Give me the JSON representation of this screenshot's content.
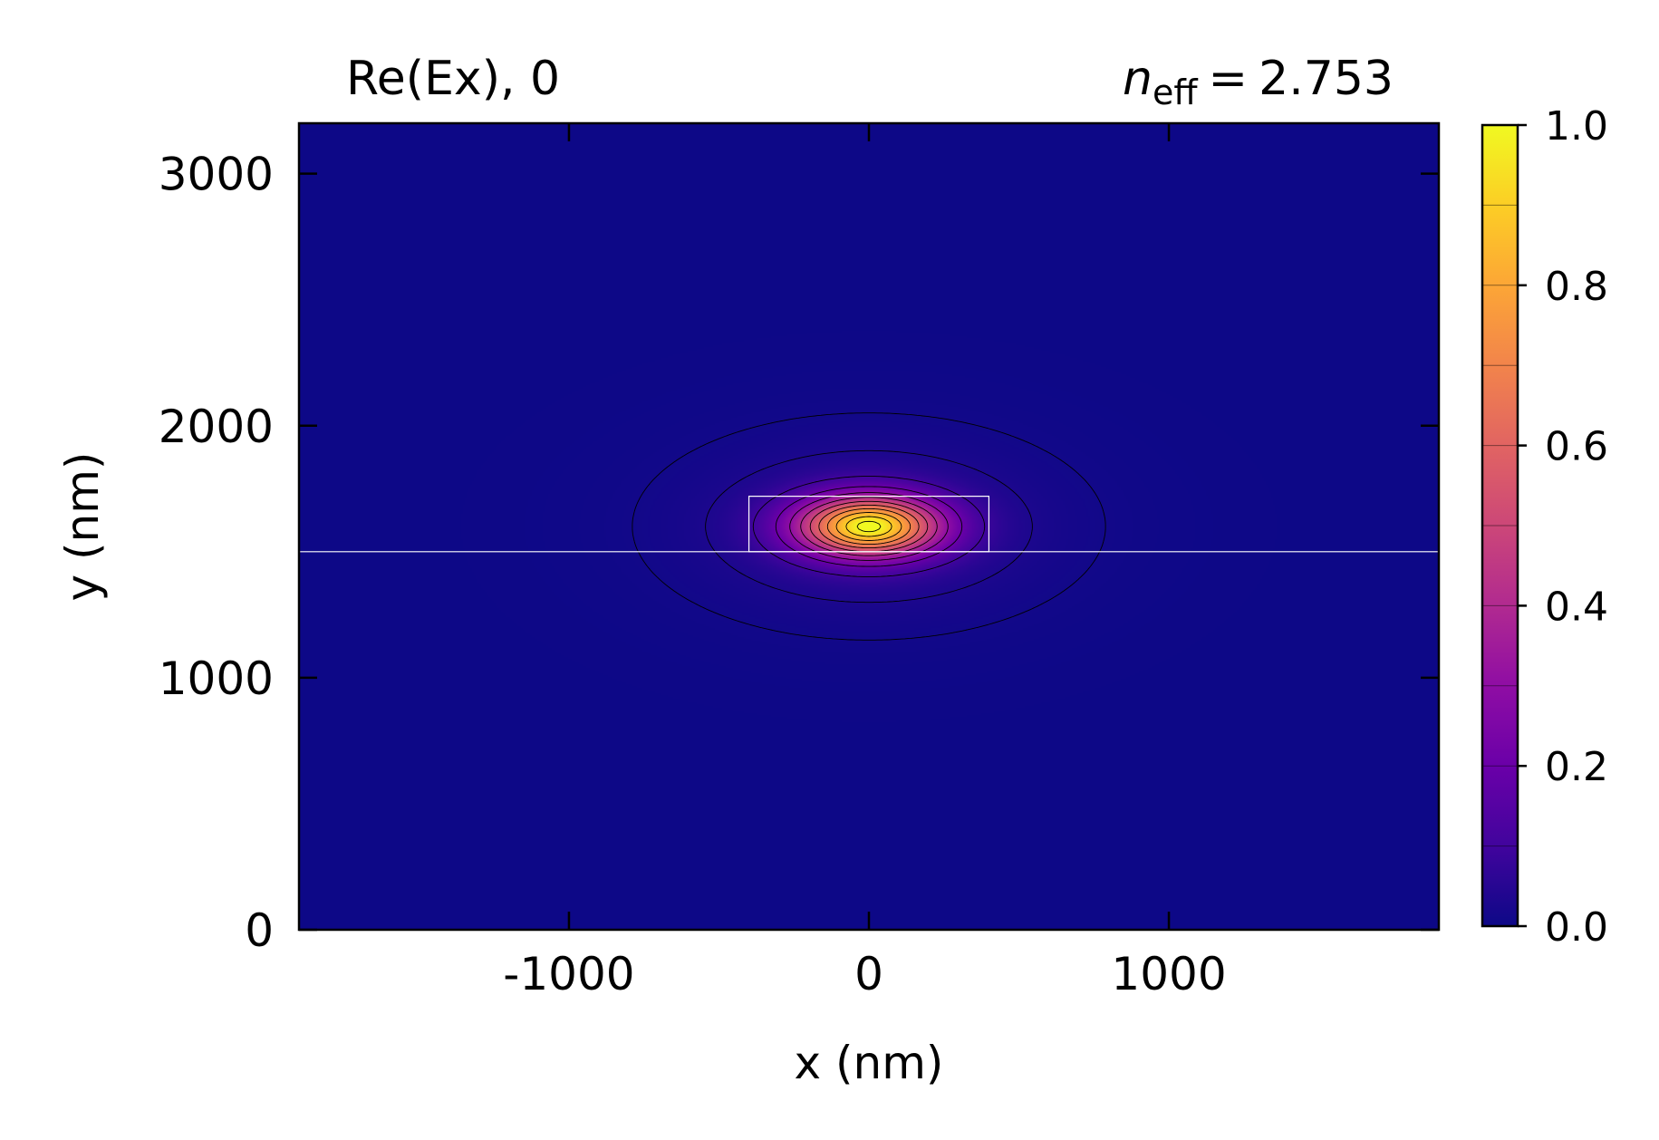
{
  "chart_data": {
    "type": "heatmap",
    "title_left": "Re(Ex), 0",
    "title_right": {
      "symbol": "n",
      "subscript": "eff",
      "equals": "=",
      "value": "2.753"
    },
    "xlabel": "x (nm)",
    "ylabel": "y (nm)",
    "xlim": [
      -1900,
      1900
    ],
    "ylim": [
      0,
      3200
    ],
    "xticks": [
      {
        "value": -1000,
        "label": "-1000"
      },
      {
        "value": 0,
        "label": "0"
      },
      {
        "value": 1000,
        "label": "1000"
      }
    ],
    "yticks": [
      {
        "value": 0,
        "label": "0"
      },
      {
        "value": 1000,
        "label": "1000"
      },
      {
        "value": 2000,
        "label": "2000"
      },
      {
        "value": 3000,
        "label": "3000"
      }
    ],
    "colormap": "plasma",
    "colorbar": {
      "range": [
        0.0,
        1.0
      ],
      "ticks": [
        {
          "value": 0.0,
          "label": "0.0"
        },
        {
          "value": 0.2,
          "label": "0.2"
        },
        {
          "value": 0.4,
          "label": "0.4"
        },
        {
          "value": 0.6,
          "label": "0.6"
        },
        {
          "value": 0.8,
          "label": "0.8"
        },
        {
          "value": 1.0,
          "label": "1.0"
        }
      ],
      "level_step": 0.1
    },
    "field": {
      "peak_value": 1.0,
      "peak_center_x": 0,
      "peak_center_y": 1600,
      "contour_levels": [
        0.01,
        0.03,
        0.1,
        0.2,
        0.3,
        0.4,
        0.5,
        0.6,
        0.7,
        0.8,
        0.9,
        0.99
      ]
    },
    "waveguide": {
      "x_range": [
        -400,
        400
      ],
      "y_range": [
        1500,
        1720
      ]
    },
    "substrate_interface_y": 1500,
    "colors": {
      "background": "#0d0887",
      "overlay_lines": "#ffffff",
      "contour_lines": "#000000"
    }
  }
}
